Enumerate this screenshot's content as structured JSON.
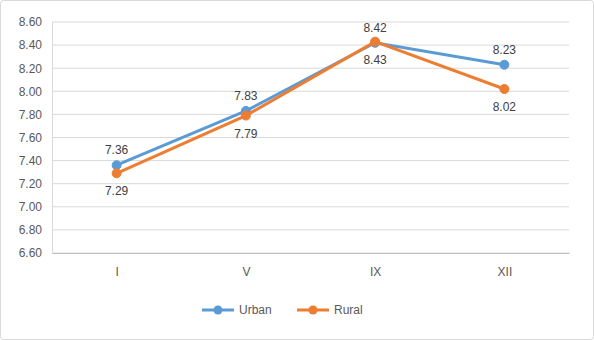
{
  "chart_data": {
    "type": "line",
    "categories": [
      "I",
      "V",
      "IX",
      "XII"
    ],
    "series": [
      {
        "name": "Urban",
        "color": "#5b9bd5",
        "marker": "circle",
        "values": [
          7.36,
          7.83,
          8.42,
          8.23
        ]
      },
      {
        "name": "Rural",
        "color": "#ed7d31",
        "marker": "circle",
        "values": [
          7.29,
          7.79,
          8.43,
          8.02
        ]
      }
    ],
    "ylim": [
      6.6,
      8.6
    ],
    "yticks": [
      {
        "value": 6.6,
        "label": "6.60"
      },
      {
        "value": 6.8,
        "label": "6.80"
      },
      {
        "value": 7,
        "label": "7.00"
      },
      {
        "value": 7.2,
        "label": "7.20"
      },
      {
        "value": 7.4,
        "label": "7.40"
      },
      {
        "value": 7.6,
        "label": "7.60"
      },
      {
        "value": 7.8,
        "label": "7.80"
      },
      {
        "value": 8,
        "label": "8.00"
      },
      {
        "value": 8.2,
        "label": "8.20"
      },
      {
        "value": 8.4,
        "label": "8.40"
      },
      {
        "value": 8.6,
        "label": "8.60"
      }
    ],
    "grid": true,
    "data_labels": true,
    "legend": "bottom"
  }
}
